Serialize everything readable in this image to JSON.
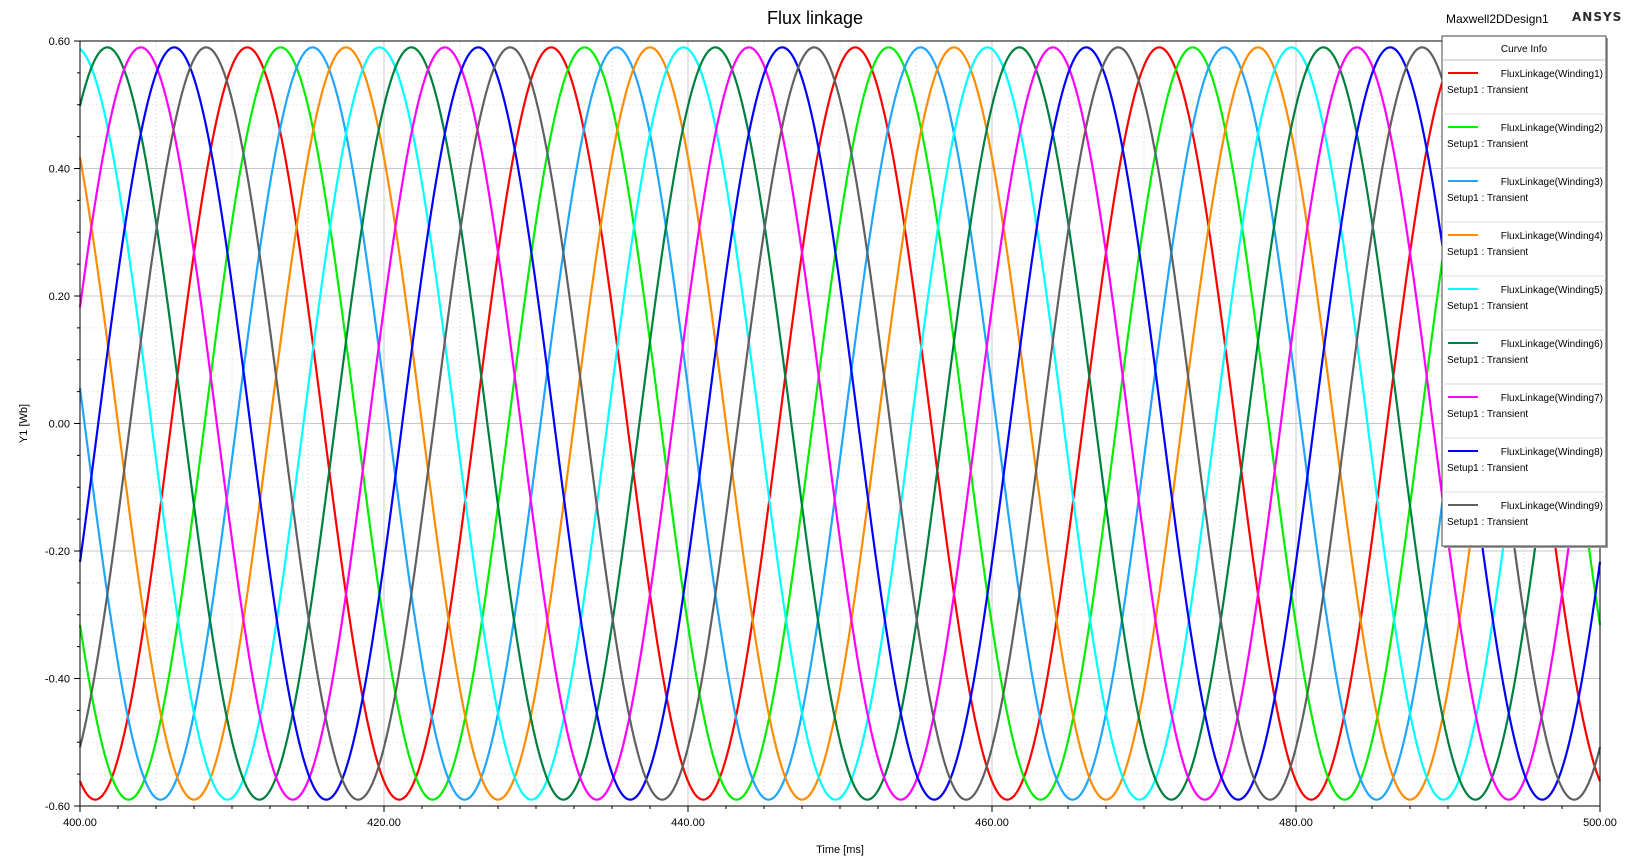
{
  "header": {
    "title": "Flux linkage",
    "design_name": "Maxwell2DDesign1",
    "brand": "ANSYS"
  },
  "legend": {
    "title": "Curve Info"
  },
  "chart_data": {
    "type": "line",
    "title": "Flux linkage",
    "xlabel": "Time [ms]",
    "ylabel": "Y1 [Wb]",
    "xlim": [
      400,
      500
    ],
    "ylim": [
      -0.6,
      0.6
    ],
    "xticks": [
      "400.00",
      "420.00",
      "440.00",
      "460.00",
      "480.00",
      "500.00"
    ],
    "yticks": [
      "0.60",
      "0.40",
      "0.20",
      "0.00",
      "-0.20",
      "-0.40",
      "-0.60"
    ],
    "grid": true,
    "legend_position": "top-right",
    "amplitude": 0.59,
    "period_ms": 20,
    "series": [
      {
        "name": "FluxLinkage(Winding1)",
        "sub": "Setup1 : Transient",
        "color": "#ff0000",
        "peak_time_ms": 411.0
      },
      {
        "name": "FluxLinkage(Winding2)",
        "sub": "Setup1 : Transient",
        "color": "#00ee00",
        "peak_time_ms": 413.2
      },
      {
        "name": "FluxLinkage(Winding3)",
        "sub": "Setup1 : Transient",
        "color": "#1fa6ff",
        "peak_time_ms": 415.3
      },
      {
        "name": "FluxLinkage(Winding4)",
        "sub": "Setup1 : Transient",
        "color": "#ff8c00",
        "peak_time_ms": 417.5
      },
      {
        "name": "FluxLinkage(Winding5)",
        "sub": "Setup1 : Transient",
        "color": "#00ffff",
        "peak_time_ms": 419.7
      },
      {
        "name": "FluxLinkage(Winding6)",
        "sub": "Setup1 : Transient",
        "color": "#008040",
        "peak_time_ms": 421.8
      },
      {
        "name": "FluxLinkage(Winding7)",
        "sub": "Setup1 : Transient",
        "color": "#ff00ff",
        "peak_time_ms": 404.0
      },
      {
        "name": "FluxLinkage(Winding8)",
        "sub": "Setup1 : Transient",
        "color": "#0000ff",
        "peak_time_ms": 406.2
      },
      {
        "name": "FluxLinkage(Winding9)",
        "sub": "Setup1 : Transient",
        "color": "#606060",
        "peak_time_ms": 408.3
      }
    ]
  }
}
